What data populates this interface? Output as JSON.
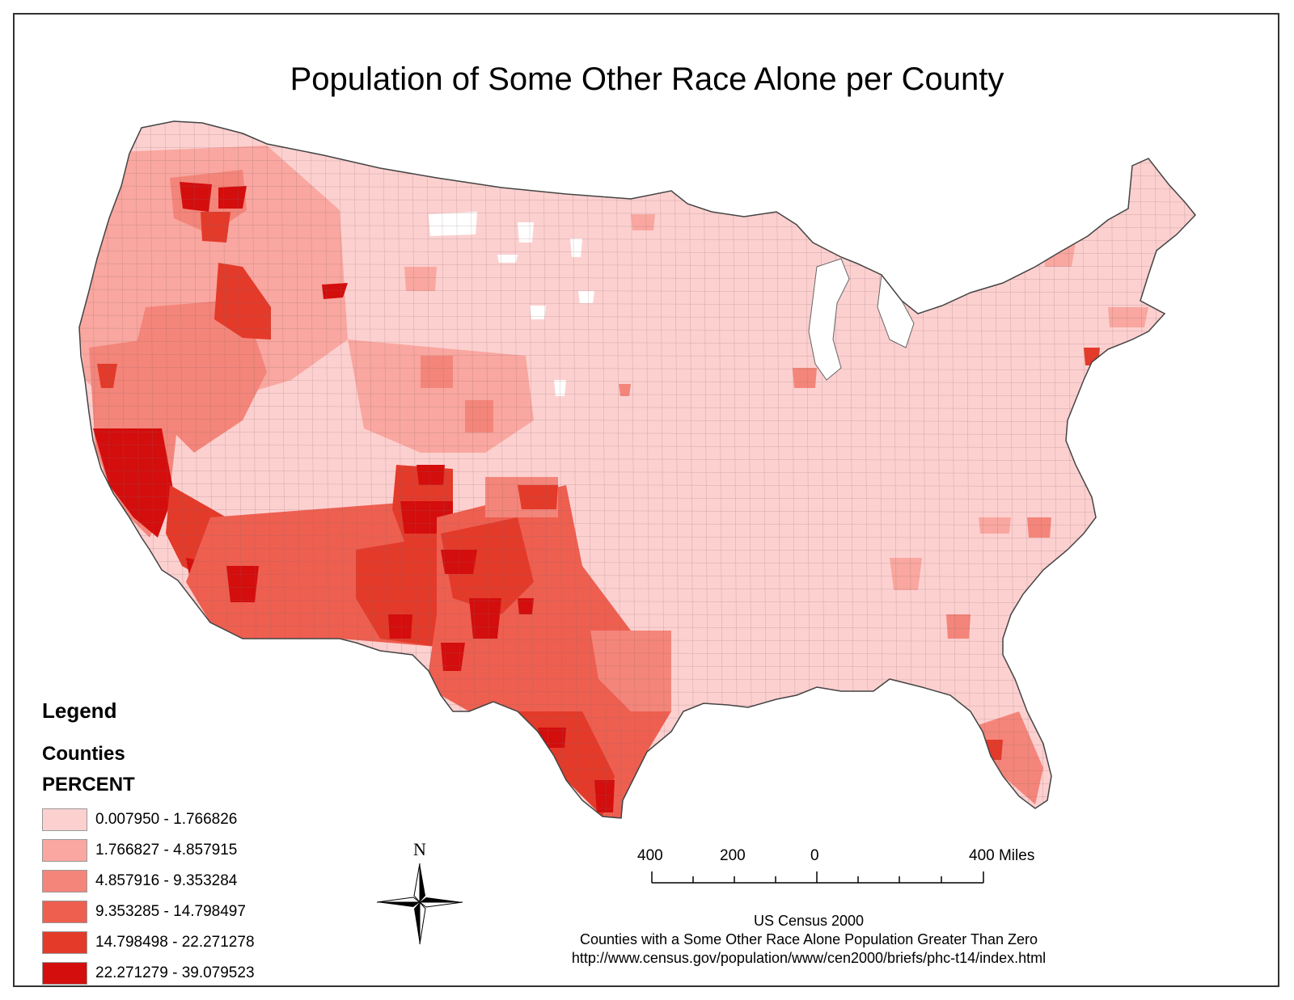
{
  "title": "Population of Some Other Race Alone per County",
  "legend": {
    "heading": "Legend",
    "layer": "Counties",
    "field": "PERCENT",
    "classes": [
      {
        "label": "0.007950 - 1.766826",
        "color": "#fdd0d0"
      },
      {
        "label": "1.766827 - 4.857915",
        "color": "#f9a7a0"
      },
      {
        "label": "4.857916 - 9.353284",
        "color": "#f4857a"
      },
      {
        "label": "9.353285 - 14.798497",
        "color": "#ee5f50"
      },
      {
        "label": "14.798498 - 22.271278",
        "color": "#e33a2a"
      },
      {
        "label": "22.271279 - 39.079523",
        "color": "#d40d0d"
      }
    ]
  },
  "north_label": "N",
  "scale": {
    "labels": [
      "400",
      "200",
      "0",
      "400 Miles"
    ]
  },
  "credits": {
    "line1": "US Census 2000",
    "line2": "Counties with a Some Other Race Alone Population Greater Than Zero",
    "line3": "http://www.census.gov/population/www/cen2000/briefs/phc-t14/index.html"
  }
}
